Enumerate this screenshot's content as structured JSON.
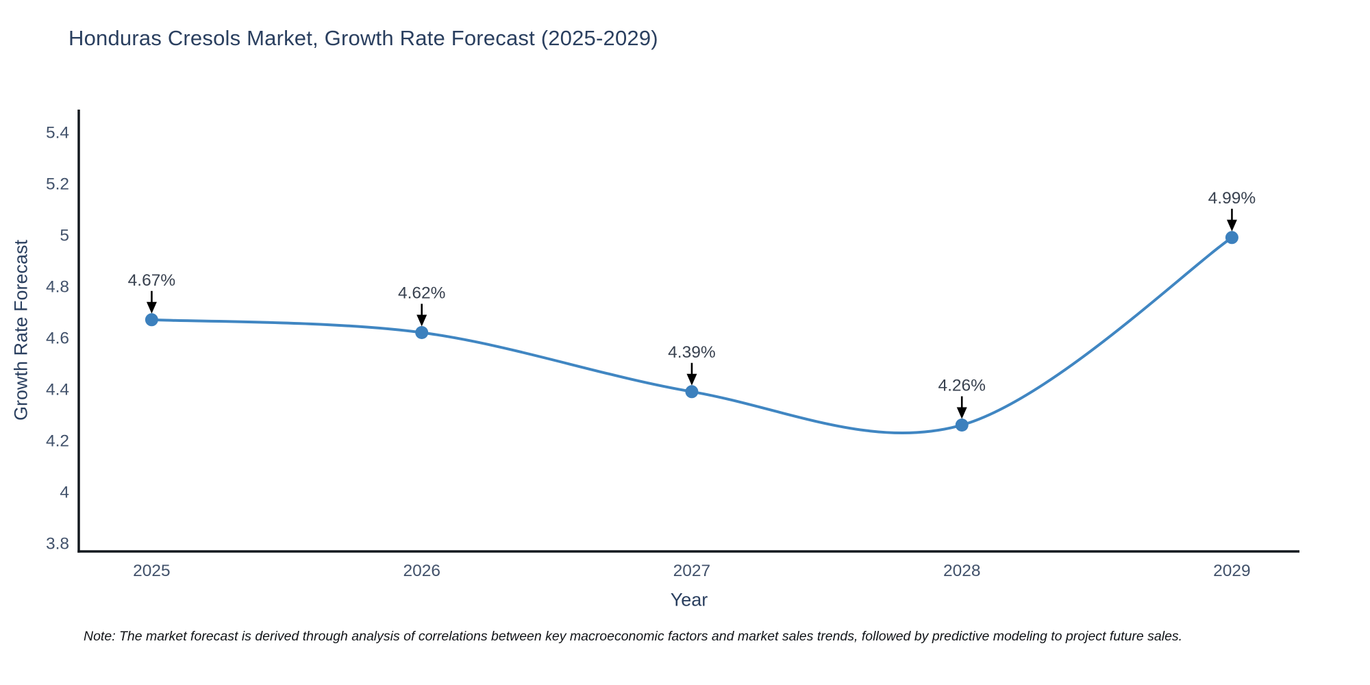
{
  "title": "Honduras Cresols Market, Growth Rate Forecast (2025-2029)",
  "footnote": "Note: The market forecast is derived through analysis of correlations between key macroeconomic factors and market sales trends, followed by predictive modeling to project future sales.",
  "chart_data": {
    "type": "line",
    "title": "Honduras Cresols Market, Growth Rate Forecast (2025-2029)",
    "xlabel": "Year",
    "ylabel": "Growth Rate Forecast",
    "x": [
      2025,
      2026,
      2027,
      2028,
      2029
    ],
    "values": [
      4.67,
      4.62,
      4.39,
      4.26,
      4.99
    ],
    "point_labels": [
      "4.67%",
      "4.62%",
      "4.39%",
      "4.26%",
      "4.99%"
    ],
    "xtick_labels": [
      "2025",
      "2026",
      "2027",
      "2028",
      "2029"
    ],
    "yticks": [
      3.8,
      4.0,
      4.2,
      4.4,
      4.6,
      4.8,
      5.0,
      5.2,
      5.4
    ],
    "ytick_labels": [
      "3.8",
      "4",
      "4.2",
      "4.4",
      "4.6",
      "4.8",
      "5",
      "5.2",
      "5.4"
    ],
    "xlim": [
      2024.73,
      2029.25
    ],
    "ylim": [
      3.768,
      5.488
    ],
    "line_shape": "spline",
    "grid": false,
    "legend": "none",
    "colors": {
      "line": "#4086c2",
      "marker": "#3c80bd",
      "axis": "#13181e",
      "annotation_arrow": "#000000",
      "title_text": "#2a3f5f",
      "tick_text": "#42526b",
      "annotation_text": "#38414f"
    }
  }
}
